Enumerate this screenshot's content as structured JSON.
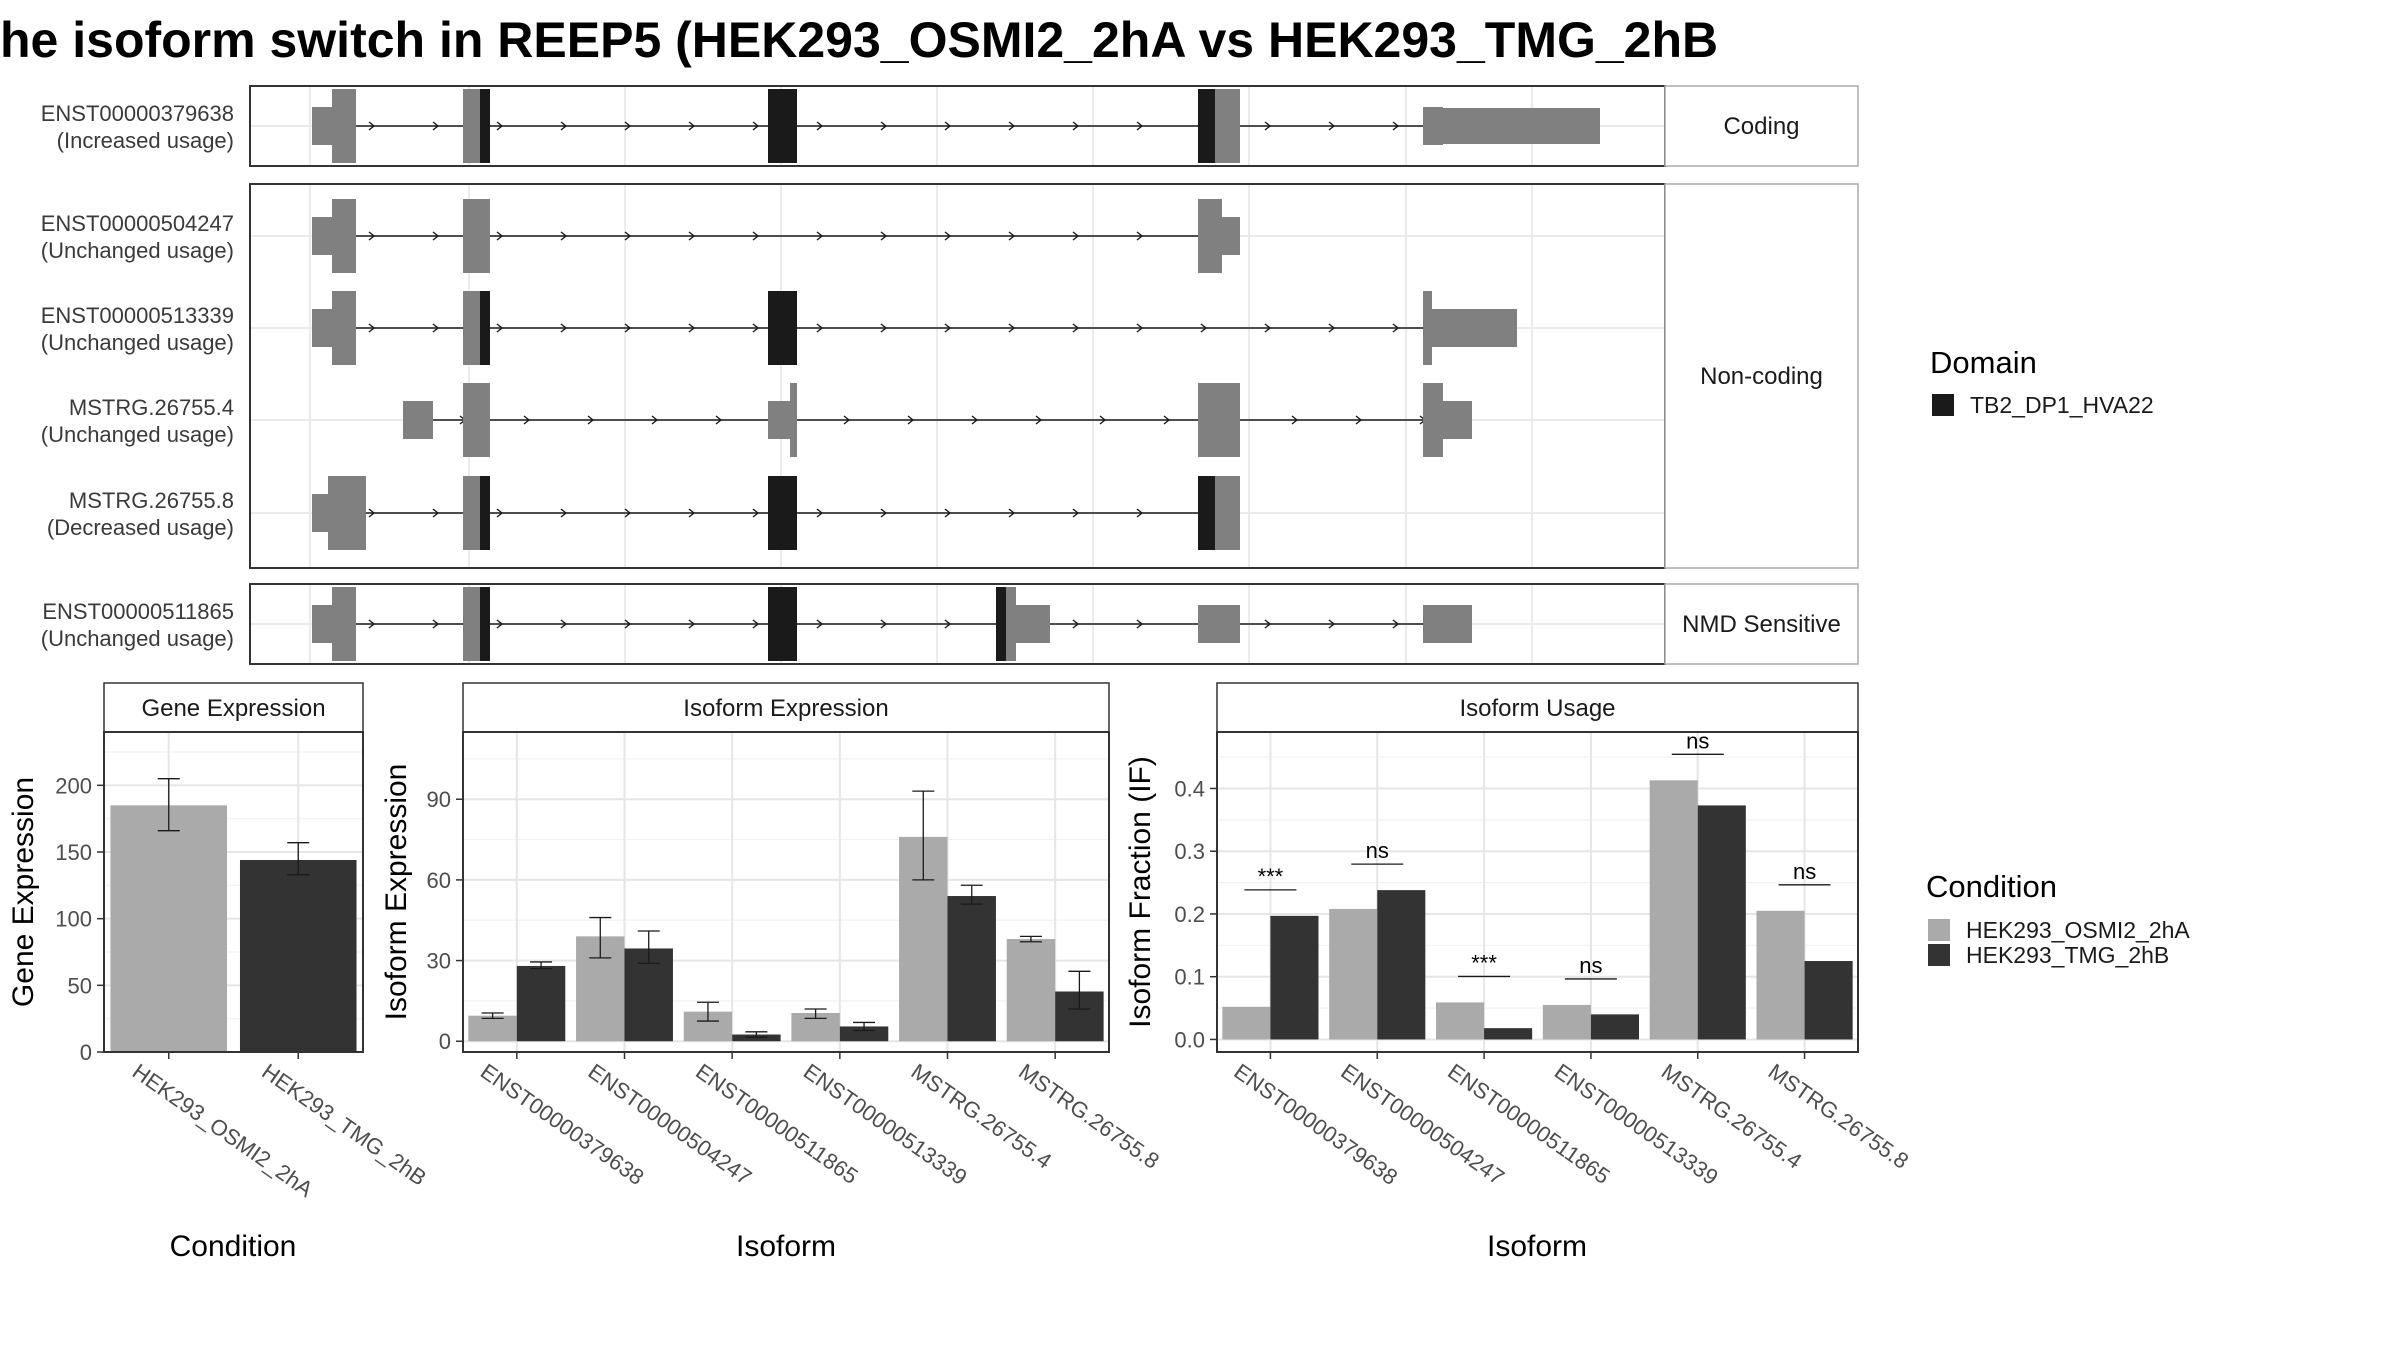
{
  "title": "he isoform switch in REEP5 (HEK293_OSMI2_2hA vs HEK293_TMG_2hB",
  "colors": {
    "exon": "#808080",
    "domain": "#1a1a1a",
    "condition_a": "#aaaaaa",
    "condition_b": "#333333"
  },
  "structure": {
    "strips": [
      {
        "label": "Coding"
      },
      {
        "label": "Non-coding"
      },
      {
        "label": "NMD Sensitive"
      }
    ],
    "transcripts": [
      {
        "name": "ENST00000379638",
        "usage": "(Increased usage)",
        "strip": 0
      },
      {
        "name": "ENST00000504247",
        "usage": "(Unchanged usage)",
        "strip": 1
      },
      {
        "name": "ENST00000513339",
        "usage": "(Unchanged usage)",
        "strip": 1
      },
      {
        "name": "MSTRG.26755.4",
        "usage": "(Unchanged usage)",
        "strip": 1
      },
      {
        "name": "MSTRG.26755.8",
        "usage": "(Decreased usage)",
        "strip": 1
      },
      {
        "name": "ENST00000511865",
        "usage": "(Unchanged usage)",
        "strip": 2
      }
    ]
  },
  "legend_domain": {
    "title": "Domain",
    "items": [
      {
        "label": "TB2_DP1_HVA22",
        "color": "#1a1a1a"
      }
    ]
  },
  "legend_condition": {
    "title": "Condition",
    "items": [
      {
        "label": "HEK293_OSMI2_2hA",
        "color": "#aaaaaa"
      },
      {
        "label": "HEK293_TMG_2hB",
        "color": "#333333"
      }
    ]
  },
  "chart_data": [
    {
      "type": "bar",
      "title": "Gene Expression",
      "xlabel": "Condition",
      "ylabel": "Gene Expression",
      "categories": [
        "HEK293_OSMI2_2hA",
        "HEK293_TMG_2hB"
      ],
      "values": [
        185,
        144
      ],
      "error_low": [
        166,
        133
      ],
      "error_high": [
        205,
        157
      ],
      "ylim": [
        0,
        240
      ],
      "yticks": [
        0,
        50,
        100,
        150,
        200
      ],
      "grid": true
    },
    {
      "type": "bar",
      "title": "Isoform Expression",
      "xlabel": "Isoform",
      "ylabel": "Isoform Expression",
      "categories": [
        "ENST00000379638",
        "ENST00000504247",
        "ENST00000511865",
        "ENST00000513339",
        "MSTRG.26755.4",
        "MSTRG.26755.8"
      ],
      "series": [
        {
          "name": "HEK293_OSMI2_2hA",
          "values": [
            9.5,
            39,
            11,
            10.5,
            76,
            38
          ],
          "error_low": [
            8.5,
            31,
            7.5,
            8.5,
            60,
            37
          ],
          "error_high": [
            10.5,
            46,
            14.5,
            12,
            93,
            39
          ]
        },
        {
          "name": "HEK293_TMG_2hB",
          "values": [
            28,
            34.5,
            2.5,
            5.5,
            54,
            18.5
          ],
          "error_low": [
            27,
            29,
            1.5,
            4,
            51,
            12
          ],
          "error_high": [
            29.5,
            41,
            3.5,
            7,
            58,
            26
          ]
        }
      ],
      "ylim": [
        -4,
        115
      ],
      "yticks": [
        0,
        30,
        60,
        90
      ],
      "grid": true
    },
    {
      "type": "bar",
      "title": "Isoform Usage",
      "xlabel": "Isoform",
      "ylabel": "Isoform Fraction (IF)",
      "categories": [
        "ENST00000379638",
        "ENST00000504247",
        "ENST00000511865",
        "ENST00000513339",
        "MSTRG.26755.4",
        "MSTRG.26755.8"
      ],
      "series": [
        {
          "name": "HEK293_OSMI2_2hA",
          "values": [
            0.052,
            0.208,
            0.059,
            0.055,
            0.413,
            0.205
          ]
        },
        {
          "name": "HEK293_TMG_2hB",
          "values": [
            0.197,
            0.238,
            0.018,
            0.04,
            0.373,
            0.125
          ]
        }
      ],
      "significance": [
        "***",
        "ns",
        "***",
        "ns",
        "ns",
        "ns"
      ],
      "ylim": [
        -0.02,
        0.49
      ],
      "yticks": [
        0.0,
        0.1,
        0.2,
        0.3,
        0.4
      ],
      "grid": true
    }
  ]
}
